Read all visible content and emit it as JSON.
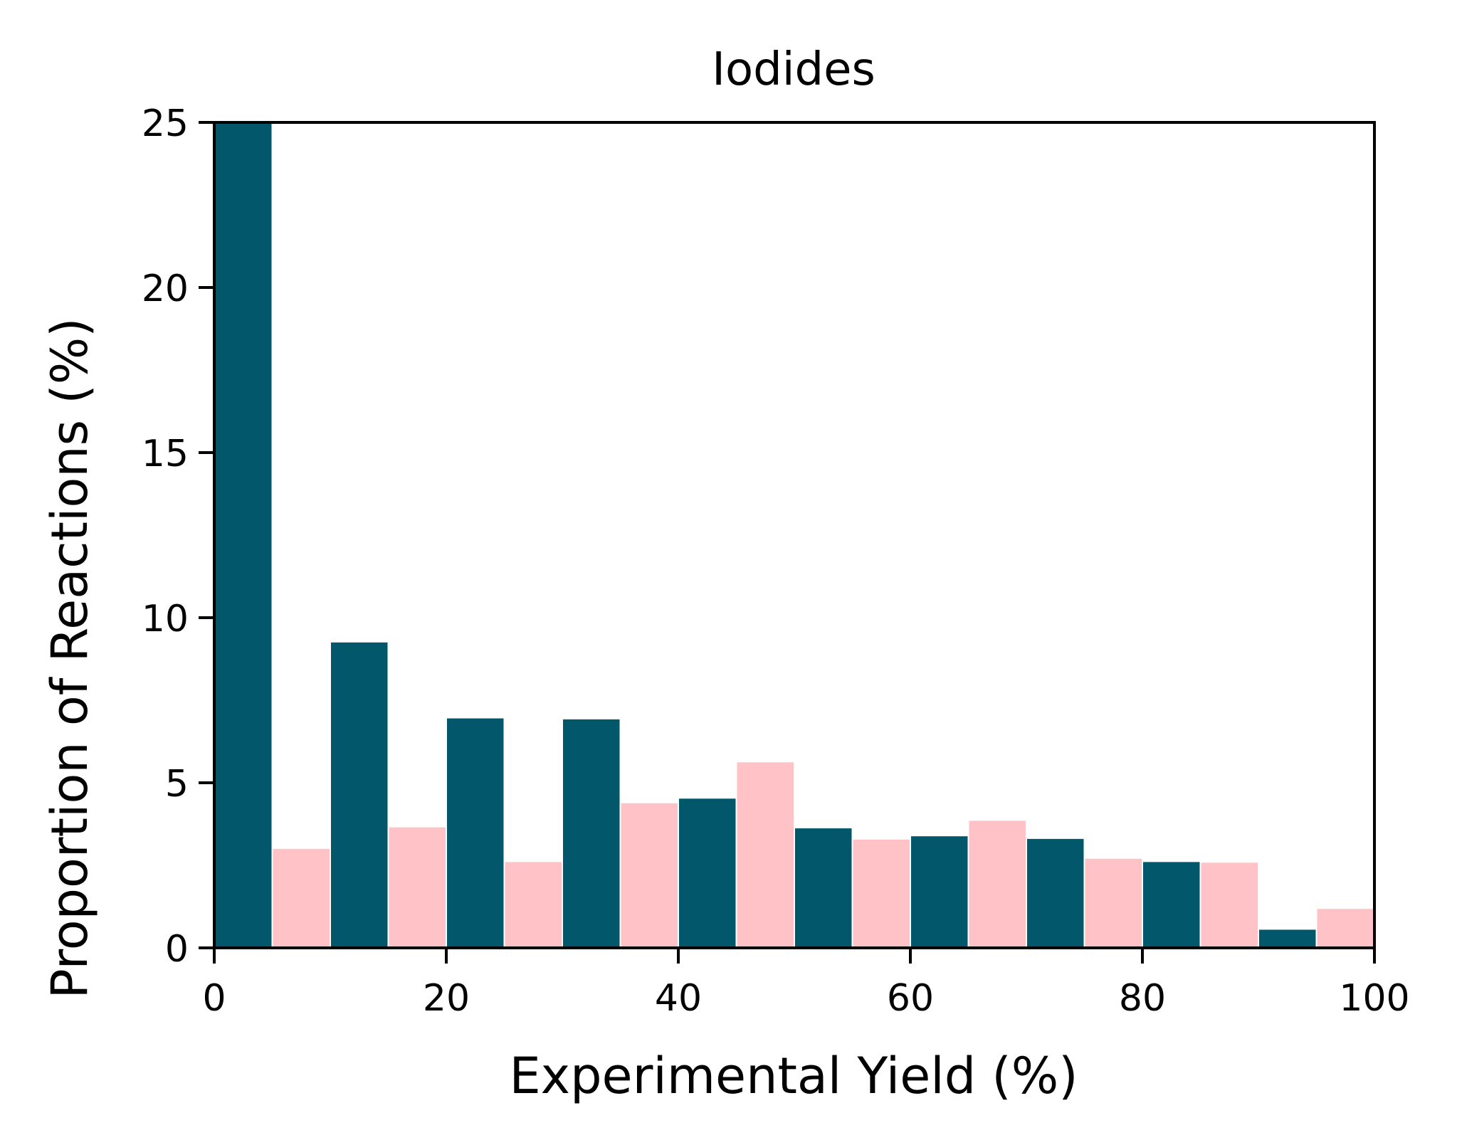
{
  "chart_data": {
    "type": "bar",
    "title": "Iodides",
    "xlabel": "Experimental Yield (%)",
    "ylabel": "Proportion of Reactions (%)",
    "xlim": [
      0,
      100
    ],
    "ylim": [
      0,
      25
    ],
    "xticks": [
      0,
      20,
      40,
      60,
      80,
      100
    ],
    "xtick_labels": [
      "0",
      "20",
      "40",
      "60",
      "80",
      "100"
    ],
    "yticks": [
      0,
      5,
      10,
      15,
      20,
      25
    ],
    "ytick_labels": [
      "0",
      "5",
      "10",
      "15",
      "20",
      "25"
    ],
    "grid": false,
    "legend": "none",
    "bins": [
      {
        "x0": 0,
        "x1": 5,
        "value": 25.0,
        "color": "#02586a"
      },
      {
        "x0": 5,
        "x1": 10,
        "value": 3.0,
        "color": "#ffc2c6"
      },
      {
        "x0": 10,
        "x1": 15,
        "value": 9.25,
        "color": "#02586a"
      },
      {
        "x0": 15,
        "x1": 20,
        "value": 3.65,
        "color": "#ffc2c6"
      },
      {
        "x0": 20,
        "x1": 25,
        "value": 6.95,
        "color": "#02586a"
      },
      {
        "x0": 25,
        "x1": 30,
        "value": 2.6,
        "color": "#ffc2c6"
      },
      {
        "x0": 30,
        "x1": 35,
        "value": 6.92,
        "color": "#02586a"
      },
      {
        "x0": 35,
        "x1": 40,
        "value": 4.38,
        "color": "#ffc2c6"
      },
      {
        "x0": 40,
        "x1": 45,
        "value": 4.52,
        "color": "#02586a"
      },
      {
        "x0": 45,
        "x1": 50,
        "value": 5.62,
        "color": "#ffc2c6"
      },
      {
        "x0": 50,
        "x1": 55,
        "value": 3.62,
        "color": "#02586a"
      },
      {
        "x0": 55,
        "x1": 60,
        "value": 3.28,
        "color": "#ffc2c6"
      },
      {
        "x0": 60,
        "x1": 65,
        "value": 3.38,
        "color": "#02586a"
      },
      {
        "x0": 65,
        "x1": 70,
        "value": 3.85,
        "color": "#ffc2c6"
      },
      {
        "x0": 70,
        "x1": 75,
        "value": 3.3,
        "color": "#02586a"
      },
      {
        "x0": 75,
        "x1": 80,
        "value": 2.7,
        "color": "#ffc2c6"
      },
      {
        "x0": 80,
        "x1": 85,
        "value": 2.6,
        "color": "#02586a"
      },
      {
        "x0": 85,
        "x1": 90,
        "value": 2.58,
        "color": "#ffc2c6"
      },
      {
        "x0": 90,
        "x1": 95,
        "value": 0.55,
        "color": "#02586a"
      },
      {
        "x0": 95,
        "x1": 100,
        "value": 1.18,
        "color": "#ffc2c6"
      }
    ],
    "colors": {
      "dark": "#02586a",
      "light": "#ffc2c6",
      "axis": "#000000"
    }
  }
}
